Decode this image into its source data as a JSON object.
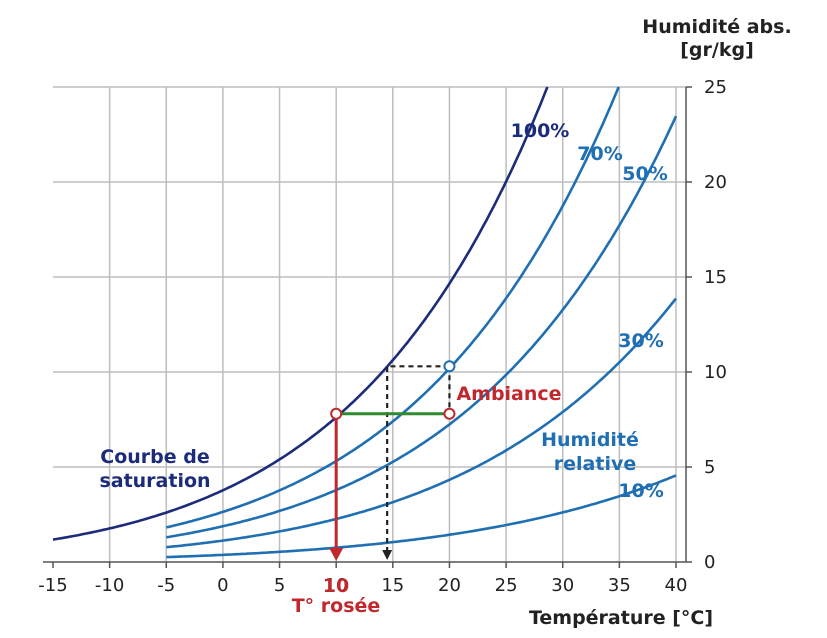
{
  "chart_data": {
    "type": "line",
    "xlabel": "Température [°C]",
    "ylabel_line1": "Humidité abs.",
    "ylabel_line2": "[gr/kg]",
    "xlim": [
      -15,
      40
    ],
    "ylim": [
      0,
      25
    ],
    "x_ticks": [
      "-15",
      "-10",
      "-5",
      "0",
      "5",
      "10",
      "15",
      "20",
      "25",
      "30",
      "35",
      "40"
    ],
    "y_ticks": [
      "0",
      "5",
      "10",
      "15",
      "20",
      "25"
    ],
    "grid": true,
    "series": [
      {
        "name": "100%",
        "rh": 1.0,
        "color": "#1c2c7a",
        "x_start": -15,
        "x": [
          -15,
          -10,
          -5,
          0,
          5,
          10,
          15,
          20,
          25,
          28.5
        ],
        "y": [
          1.0,
          1.6,
          2.6,
          3.8,
          5.4,
          7.6,
          10.6,
          14.7,
          20.1,
          25.0
        ]
      },
      {
        "name": "70%",
        "rh": 0.7,
        "color": "#1f6fb2",
        "x_start": -5,
        "x": [
          -5,
          0,
          5,
          10,
          15,
          20,
          25,
          30,
          35,
          35.0
        ],
        "y": [
          1.8,
          2.6,
          3.8,
          5.3,
          7.4,
          10.3,
          14.0,
          19.0,
          25.0,
          25.0
        ]
      },
      {
        "name": "50%",
        "rh": 0.5,
        "color": "#1f6fb2",
        "x_start": -5,
        "x": [
          -5,
          0,
          5,
          10,
          15,
          20,
          25,
          30,
          35,
          40
        ],
        "y": [
          1.3,
          1.9,
          2.7,
          3.8,
          5.3,
          7.3,
          10.0,
          13.5,
          18.0,
          24.0
        ]
      },
      {
        "name": "30%",
        "rh": 0.3,
        "color": "#1f6fb2",
        "x_start": -5,
        "x": [
          -5,
          0,
          5,
          10,
          15,
          20,
          25,
          30,
          35,
          40
        ],
        "y": [
          0.8,
          1.1,
          1.6,
          2.3,
          3.2,
          4.4,
          6.0,
          8.1,
          10.8,
          14.2
        ]
      },
      {
        "name": "10%",
        "rh": 0.1,
        "color": "#1f6fb2",
        "x_start": -5,
        "x": [
          -5,
          0,
          5,
          10,
          15,
          20,
          25,
          30,
          35,
          40
        ],
        "y": [
          0.3,
          0.4,
          0.5,
          0.8,
          1.1,
          1.5,
          2.0,
          2.7,
          3.6,
          4.7
        ]
      }
    ],
    "annotations": {
      "saturation_label_line1": "Courbe de",
      "saturation_label_line2": "saturation",
      "relative_label_line1": "Humidité",
      "relative_label_line2": "relative",
      "ambiance_label": "Ambiance",
      "dew_value": "10",
      "dew_label": "T° rosée"
    },
    "markers": {
      "ambiance": {
        "x": 20,
        "y": 7.8
      },
      "dew_point": {
        "x": 10,
        "y": 7.8
      },
      "saturated": {
        "x": 20,
        "y": 10.3
      },
      "dashed_drop_x": 14.5
    },
    "colors": {
      "saturation_curve": "#1c2c7a",
      "rh_curves": "#1f6fb2",
      "dew_line": "#c0282d",
      "level_line": "#2e8b2e",
      "dashed": "#222222",
      "grid": "#bdbdbd"
    }
  }
}
